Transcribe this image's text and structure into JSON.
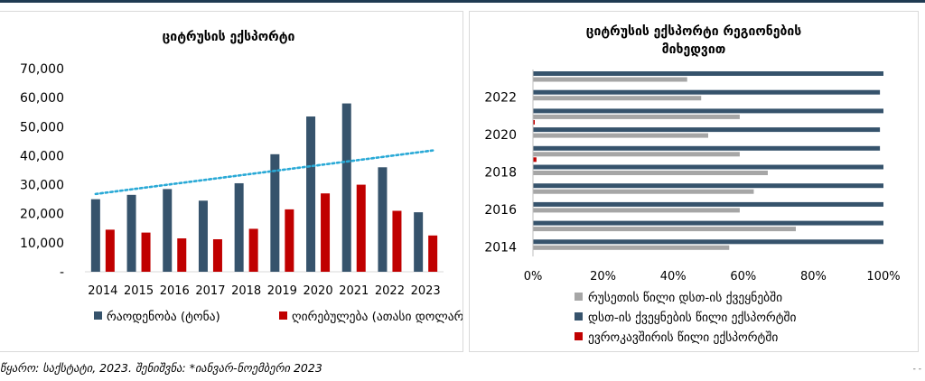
{
  "colors": {
    "quantity": "#36536c",
    "value": "#c00000",
    "trend": "#29a9d6",
    "russia": "#a6a6a6",
    "cis": "#36536c",
    "eu": "#c00000",
    "rule": "#1f3a52"
  },
  "source_note": "წყარო: საქსტატი, 2023. შენიშვნა: *იანვარ-ნოემბერი 2023",
  "chart_data": [
    {
      "type": "bar",
      "title": "ციტრუსის ექსპორტი",
      "categories": [
        "2014",
        "2015",
        "2016",
        "2017",
        "2018",
        "2019",
        "2020",
        "2021",
        "2022",
        "2023"
      ],
      "series": [
        {
          "name": "რაოდენობა (ტონა)",
          "values": [
            25000,
            26500,
            28500,
            24500,
            30500,
            40500,
            53500,
            58000,
            36000,
            20500
          ]
        },
        {
          "name": "ღირებულება (ათასი დოლარი)",
          "values": [
            14500,
            13500,
            11500,
            11200,
            14800,
            21500,
            27000,
            30000,
            21000,
            12500
          ]
        }
      ],
      "trendline": {
        "from": 26800,
        "to": 41800
      },
      "ylim": [
        0,
        70000
      ],
      "yticks": [
        "-",
        "10,000",
        "20,000",
        "30,000",
        "40,000",
        "50,000",
        "60,000",
        "70,000"
      ],
      "legend": "bottom",
      "grid": false
    },
    {
      "type": "bar",
      "orientation": "horizontal",
      "title_lines": [
        "ციტრუსის ექსპორტი რეგიონების",
        "მიხედვით"
      ],
      "years": [
        "2014",
        "2015",
        "2016",
        "2017",
        "2018",
        "2019",
        "2020",
        "2021",
        "2022",
        "2023"
      ],
      "year_labels": [
        "2014",
        "2016",
        "2018",
        "2020",
        "2022"
      ],
      "series": [
        {
          "name": "რუსეთის წილი დსთ-ის ქვეყნებში",
          "values": [
            56,
            75,
            59,
            63,
            67,
            59,
            50,
            59,
            48,
            44
          ]
        },
        {
          "name": "დსთ-ის ქვეყნების წილი ექსპორტში",
          "values": [
            100,
            100,
            100,
            100,
            100,
            99,
            99,
            100,
            99,
            100
          ]
        },
        {
          "name": "ევროკავშირის წილი ექსპორტში",
          "values": [
            0,
            0,
            0,
            0,
            0,
            1,
            0,
            0.4,
            0,
            0
          ]
        }
      ],
      "xticks": [
        "0%",
        "20%",
        "40%",
        "60%",
        "80%",
        "100%"
      ],
      "xlim": [
        0,
        100
      ],
      "legend": "bottom"
    }
  ]
}
